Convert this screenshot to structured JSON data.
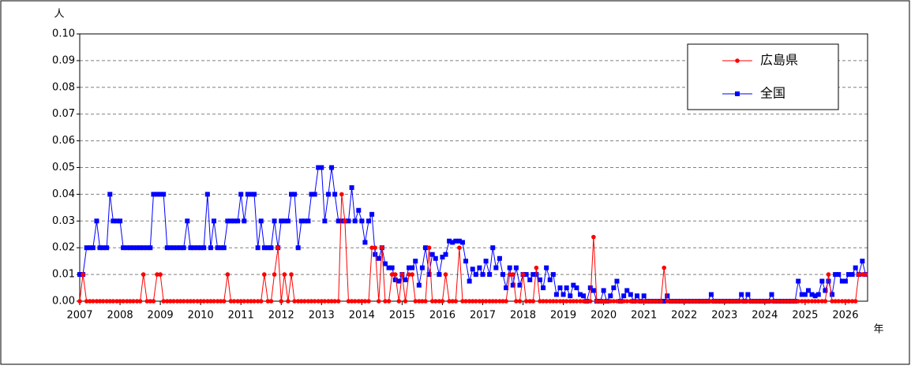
{
  "chart_data": {
    "type": "line",
    "y_label": "人",
    "x_label": "年",
    "xlim": [
      2007,
      2026.55
    ],
    "xticks": [
      2007,
      2008,
      2009,
      2010,
      2011,
      2012,
      2013,
      2014,
      2015,
      2016,
      2017,
      2018,
      2019,
      2020,
      2021,
      2022,
      2023,
      2024,
      2025,
      2026
    ],
    "ylim": [
      0,
      0.1
    ],
    "yticks": [
      {
        "value": 0,
        "label": "0.00"
      },
      0.01,
      0.02,
      0.03,
      0.04,
      0.05,
      0.06,
      0.07,
      0.08,
      0.09,
      {
        "value": 0.1,
        "label": "0.10"
      }
    ],
    "grid": true,
    "legend": "upper right",
    "x": [
      2007,
      2007.08,
      2007.17,
      2007.25,
      2007.33,
      2007.42,
      2007.5,
      2007.58,
      2007.67,
      2007.75,
      2007.83,
      2007.92,
      2008,
      2008.08,
      2008.17,
      2008.25,
      2008.33,
      2008.42,
      2008.5,
      2008.58,
      2008.67,
      2008.75,
      2008.83,
      2008.92,
      2009,
      2009.08,
      2009.17,
      2009.25,
      2009.33,
      2009.42,
      2009.5,
      2009.58,
      2009.67,
      2009.75,
      2009.83,
      2009.92,
      2010,
      2010.08,
      2010.17,
      2010.25,
      2010.33,
      2010.42,
      2010.5,
      2010.58,
      2010.67,
      2010.75,
      2010.83,
      2010.92,
      2011,
      2011.08,
      2011.17,
      2011.25,
      2011.33,
      2011.42,
      2011.5,
      2011.58,
      2011.67,
      2011.75,
      2011.83,
      2011.92,
      2012,
      2012.08,
      2012.17,
      2012.25,
      2012.33,
      2012.42,
      2012.5,
      2012.58,
      2012.67,
      2012.75,
      2012.83,
      2012.92,
      2013,
      2013.08,
      2013.17,
      2013.25,
      2013.33,
      2013.42,
      2013.5,
      2013.58,
      2013.67,
      2013.75,
      2013.83,
      2013.92,
      2014,
      2014.08,
      2014.17,
      2014.25,
      2014.33,
      2014.42,
      2014.5,
      2014.58,
      2014.67,
      2014.75,
      2014.83,
      2014.92,
      2015,
      2015.08,
      2015.17,
      2015.25,
      2015.33,
      2015.42,
      2015.5,
      2015.58,
      2015.67,
      2015.75,
      2015.83,
      2015.92,
      2016,
      2016.08,
      2016.17,
      2016.25,
      2016.33,
      2016.42,
      2016.5,
      2016.58,
      2016.67,
      2016.75,
      2016.83,
      2016.92,
      2017,
      2017.08,
      2017.17,
      2017.25,
      2017.33,
      2017.42,
      2017.5,
      2017.58,
      2017.67,
      2017.75,
      2017.83,
      2017.92,
      2018,
      2018.08,
      2018.17,
      2018.25,
      2018.33,
      2018.42,
      2018.5,
      2018.58,
      2018.67,
      2018.75,
      2018.83,
      2018.92,
      2019,
      2019.08,
      2019.17,
      2019.25,
      2019.33,
      2019.42,
      2019.5,
      2019.58,
      2019.67,
      2019.75,
      2019.83,
      2019.92,
      2020,
      2020.08,
      2020.17,
      2020.25,
      2020.33,
      2020.42,
      2020.5,
      2020.58,
      2020.67,
      2020.75,
      2020.83,
      2020.92,
      2021,
      2021.08,
      2021.17,
      2021.25,
      2021.33,
      2021.42,
      2021.5,
      2021.58,
      2021.67,
      2021.75,
      2021.83,
      2021.92,
      2022,
      2022.08,
      2022.17,
      2022.25,
      2022.33,
      2022.42,
      2022.5,
      2022.58,
      2022.67,
      2022.75,
      2022.83,
      2022.92,
      2023,
      2023.08,
      2023.17,
      2023.25,
      2023.33,
      2023.42,
      2023.5,
      2023.58,
      2023.67,
      2023.75,
      2023.83,
      2023.92,
      2024,
      2024.08,
      2024.17,
      2024.25,
      2024.33,
      2024.42,
      2024.5,
      2024.58,
      2024.67,
      2024.75,
      2024.83,
      2024.92,
      2025,
      2025.08,
      2025.17,
      2025.25,
      2025.33,
      2025.42,
      2025.5,
      2025.58,
      2025.67,
      2025.75,
      2025.83,
      2025.92,
      2026,
      2026.08,
      2026.17,
      2026.25,
      2026.33,
      2026.42,
      2026.5
    ],
    "series": [
      {
        "name": "広島県",
        "color": "#ff0000",
        "marker": "circle",
        "values": [
          0,
          0.01,
          0,
          0,
          0,
          0,
          0,
          0,
          0,
          0,
          0,
          0,
          0,
          0,
          0,
          0,
          0,
          0,
          0,
          0.01,
          0,
          0,
          0,
          0.01,
          0.01,
          0,
          0,
          0,
          0,
          0,
          0,
          0,
          0,
          0,
          0,
          0,
          0,
          0,
          0,
          0,
          0,
          0,
          0,
          0,
          0.01,
          0,
          0,
          0,
          0,
          0,
          0,
          0,
          0,
          0,
          0,
          0.01,
          0,
          0,
          0.01,
          0.02,
          0,
          0.01,
          0,
          0.01,
          0,
          0,
          0,
          0,
          0,
          0,
          0,
          0,
          0,
          0,
          0,
          0,
          0,
          0,
          0.04,
          0.03,
          0,
          0,
          0,
          0,
          0,
          0,
          0,
          0.02,
          0.02,
          0,
          0.02,
          0,
          0,
          0.01,
          0.01,
          0,
          0.01,
          0,
          0.01,
          0.01,
          0,
          0,
          0,
          0,
          0.02,
          0,
          0,
          0,
          0,
          0.01,
          0,
          0,
          0,
          0.02,
          0,
          0,
          0,
          0,
          0,
          0,
          0,
          0,
          0,
          0,
          0,
          0,
          0,
          0,
          0.01,
          0.01,
          0,
          0,
          0.01,
          0,
          0,
          0,
          0.0125,
          0,
          0,
          0,
          0,
          0,
          0,
          0,
          0,
          0,
          0,
          0,
          0,
          0,
          0,
          0,
          0,
          0.024,
          0,
          0,
          0,
          0,
          0,
          0,
          0,
          0,
          0,
          0,
          0,
          0,
          0,
          0,
          0,
          0,
          0,
          0,
          0,
          0,
          0.0125,
          0,
          0,
          0,
          0,
          0,
          0,
          0,
          0,
          0,
          0,
          0,
          0,
          0,
          0,
          0,
          0,
          0,
          0,
          0,
          0,
          0,
          0,
          0,
          0,
          0,
          0,
          0,
          0,
          0,
          0,
          0,
          0,
          0,
          0,
          0,
          0,
          0,
          0,
          0,
          0,
          0,
          0,
          0,
          0,
          0,
          0,
          0,
          0,
          0.01,
          0,
          0,
          0,
          0,
          0,
          0,
          0,
          0,
          0.01,
          0.01,
          0.01
        ]
      },
      {
        "name": "全国",
        "color": "#0000ff",
        "marker": "square",
        "values": [
          0.01,
          0.01,
          0.02,
          0.02,
          0.02,
          0.03,
          0.02,
          0.02,
          0.02,
          0.04,
          0.03,
          0.03,
          0.03,
          0.02,
          0.02,
          0.02,
          0.02,
          0.02,
          0.02,
          0.02,
          0.02,
          0.02,
          0.04,
          0.04,
          0.04,
          0.04,
          0.02,
          0.02,
          0.02,
          0.02,
          0.02,
          0.02,
          0.03,
          0.02,
          0.02,
          0.02,
          0.02,
          0.02,
          0.04,
          0.02,
          0.03,
          0.02,
          0.02,
          0.02,
          0.03,
          0.03,
          0.03,
          0.03,
          0.04,
          0.03,
          0.04,
          0.04,
          0.04,
          0.02,
          0.03,
          0.02,
          0.02,
          0.02,
          0.03,
          0.02,
          0.03,
          0.03,
          0.03,
          0.04,
          0.04,
          0.02,
          0.03,
          0.03,
          0.03,
          0.04,
          0.04,
          0.05,
          0.05,
          0.03,
          0.04,
          0.05,
          0.04,
          0.03,
          0.03,
          0.03,
          0.03,
          0.0425,
          0.03,
          0.034,
          0.03,
          0.022,
          0.03,
          0.0325,
          0.0175,
          0.016,
          0.02,
          0.014,
          0.0125,
          0.0125,
          0.008,
          0.0075,
          0.01,
          0.008,
          0.0125,
          0.0125,
          0.015,
          0.006,
          0.0125,
          0.02,
          0.01,
          0.0175,
          0.016,
          0.01,
          0.0165,
          0.0175,
          0.0225,
          0.022,
          0.0225,
          0.0225,
          0.022,
          0.015,
          0.0075,
          0.012,
          0.01,
          0.0125,
          0.01,
          0.015,
          0.01,
          0.02,
          0.0125,
          0.016,
          0.01,
          0.005,
          0.0125,
          0.006,
          0.0125,
          0.006,
          0.01,
          0.01,
          0.008,
          0.01,
          0.01,
          0.008,
          0.005,
          0.0125,
          0.008,
          0.01,
          0.0025,
          0.005,
          0.0025,
          0.005,
          0.002,
          0.006,
          0.005,
          0.0025,
          0.002,
          0,
          0.005,
          0.004,
          0,
          0,
          0.004,
          0,
          0.002,
          0.005,
          0.0075,
          0,
          0.002,
          0.004,
          0.0025,
          0,
          0.002,
          0,
          0.002,
          0,
          0,
          0,
          0,
          0,
          0,
          0.002,
          0,
          0,
          0,
          0,
          0,
          0,
          0,
          0,
          0,
          0,
          0,
          0,
          0.0025,
          0,
          0,
          0,
          0,
          0,
          0,
          0,
          0,
          0.0025,
          0,
          0.0025,
          0,
          0,
          0,
          0,
          0,
          0,
          0.0025,
          0,
          0,
          0,
          0,
          0,
          0,
          0,
          0.0075,
          0.0025,
          0.0025,
          0.004,
          0.0025,
          0.002,
          0.0025,
          0.0075,
          0.004,
          0.0075,
          0.0025,
          0.01,
          0.01,
          0.0075,
          0.0075,
          0.01,
          0.01,
          0.0125,
          0.01,
          0.015,
          0.01
        ]
      }
    ]
  }
}
